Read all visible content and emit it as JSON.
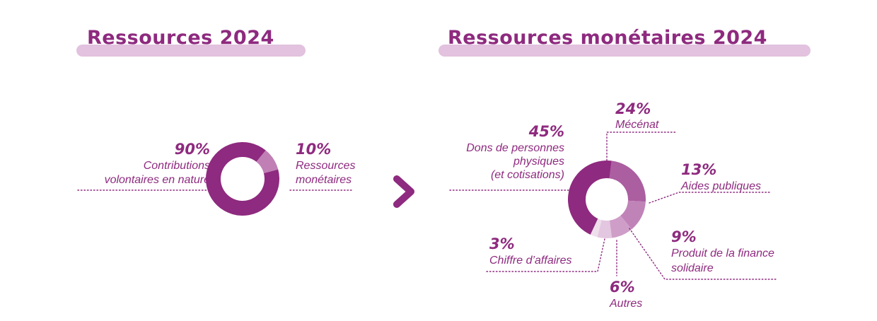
{
  "headings": {
    "left": "Ressources 2024",
    "right": "Ressources monétaires 2024"
  },
  "colors": {
    "primary": "#8e2a7f",
    "band": "#e2c2de",
    "arrow": "#8e2a7f"
  },
  "chart_data": [
    {
      "type": "pie",
      "donut": true,
      "title": "Ressources 2024",
      "slices": [
        {
          "label_lines": [
            "Contributions",
            "volontaires en nature"
          ],
          "percent_label": "90%",
          "value": 90,
          "color": "#8e2a7f"
        },
        {
          "label_lines": [
            "Ressources",
            "monétaires"
          ],
          "percent_label": "10%",
          "value": 10,
          "color": "#c07fb5"
        }
      ]
    },
    {
      "type": "pie",
      "donut": true,
      "title": "Ressources monétaires 2024",
      "slices": [
        {
          "label_lines": [
            "Mécénat"
          ],
          "percent_label": "24%",
          "value": 24,
          "color": "#ab5ea0"
        },
        {
          "label_lines": [
            "Aides publiques"
          ],
          "percent_label": "13%",
          "value": 13,
          "color": "#c083b8"
        },
        {
          "label_lines": [
            "Produit de la finance",
            "solidaire"
          ],
          "percent_label": "9%",
          "value": 9,
          "color": "#cf9ec8"
        },
        {
          "label_lines": [
            "Autres"
          ],
          "percent_label": "6%",
          "value": 6,
          "color": "#e3c6df"
        },
        {
          "label_lines": [
            "Chiffre d’affaires"
          ],
          "percent_label": "3%",
          "value": 3,
          "color": "#efdeec"
        },
        {
          "label_lines": [
            "Dons de personnes",
            "physiques",
            "(et cotisations)"
          ],
          "percent_label": "45%",
          "value": 45,
          "color": "#8e2a7f"
        }
      ]
    }
  ]
}
